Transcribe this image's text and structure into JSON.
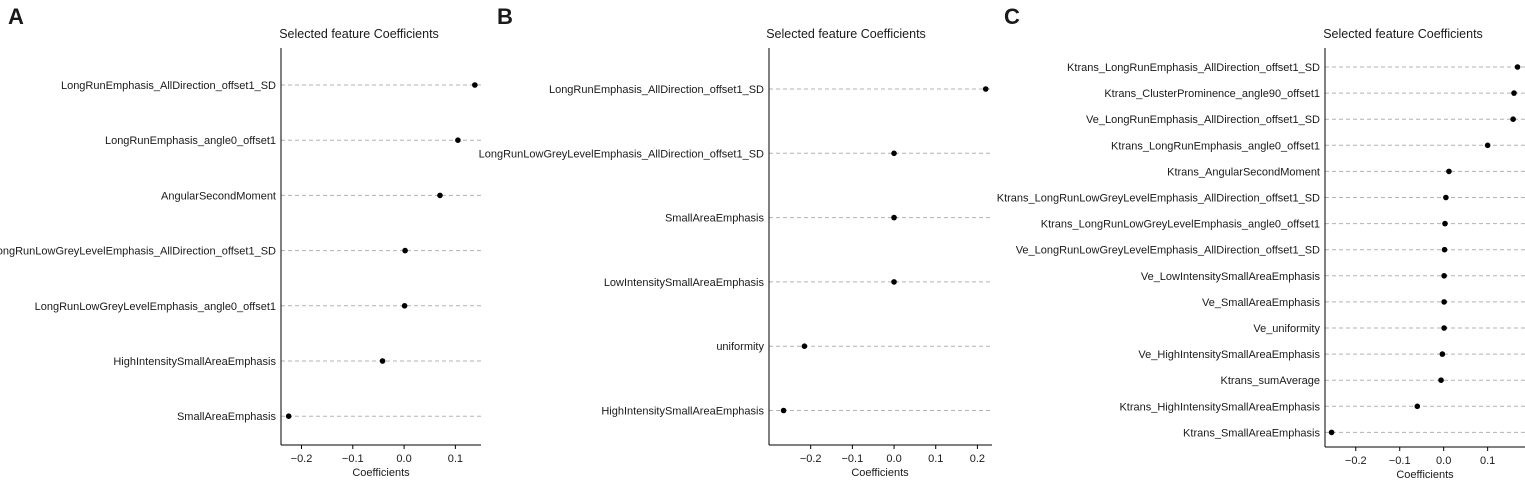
{
  "chart_data": [
    {
      "panel_label": "A",
      "type": "scatter",
      "title": "Selected feature Coefficients",
      "xlabel": "Coefficients",
      "ylabel": "",
      "xlim": [
        -0.24,
        0.15
      ],
      "xticks": [
        -0.2,
        -0.1,
        0.0,
        0.1
      ],
      "xtick_labels": [
        "−0.2",
        "−0.1",
        "0.0",
        "0.1"
      ],
      "grid": "horizontal-dashed",
      "features": [
        "LongRunEmphasis_AllDirection_offset1_SD",
        "LongRunEmphasis_angle0_offset1",
        "AngularSecondMoment",
        "LongRunLowGreyLevelEmphasis_AllDirection_offset1_SD",
        "LongRunLowGreyLevelEmphasis_angle0_offset1",
        "HighIntensitySmallAreaEmphasis",
        "SmallAreaEmphasis"
      ],
      "values": [
        0.138,
        0.105,
        0.07,
        0.002,
        0.001,
        -0.042,
        -0.225
      ]
    },
    {
      "panel_label": "B",
      "type": "scatter",
      "title": "Selected feature Coefficients",
      "xlabel": "Coefficients",
      "ylabel": "",
      "xlim": [
        -0.3,
        0.235
      ],
      "xticks": [
        -0.2,
        -0.1,
        0.0,
        0.1,
        0.2
      ],
      "xtick_labels": [
        "−0.2",
        "−0.1",
        "0.0",
        "0.1",
        "0.2"
      ],
      "grid": "horizontal-dashed",
      "features": [
        "LongRunEmphasis_AllDirection_offset1_SD",
        "LongRunLowGreyLevelEmphasis_AllDirection_offset1_SD",
        "SmallAreaEmphasis",
        "LowIntensitySmallAreaEmphasis",
        "uniformity",
        "HighIntensitySmallAreaEmphasis"
      ],
      "values": [
        0.22,
        0.0,
        0.0,
        0.0,
        -0.215,
        -0.265
      ]
    },
    {
      "panel_label": "C",
      "type": "scatter",
      "title": "Selected feature Coefficients",
      "xlabel": "Coefficients",
      "ylabel": "",
      "xlim": [
        -0.27,
        0.185
      ],
      "xticks": [
        -0.2,
        -0.1,
        0.0,
        0.1
      ],
      "xtick_labels": [
        "−0.2",
        "−0.1",
        "0.0",
        "0.1"
      ],
      "grid": "horizontal-dashed",
      "features": [
        "Ktrans_LongRunEmphasis_AllDirection_offset1_SD",
        "Ktrans_ClusterProminence_angle90_offset1",
        "Ve_LongRunEmphasis_AllDirection_offset1_SD",
        "Ktrans_LongRunEmphasis_angle0_offset1",
        "Ktrans_AngularSecondMoment",
        "Ktrans_LongRunLowGreyLevelEmphasis_AllDirection_offset1_SD",
        "Ktrans_LongRunLowGreyLevelEmphasis_angle0_offset1",
        "Ve_LongRunLowGreyLevelEmphasis_AllDirection_offset1_SD",
        "Ve_LowIntensitySmallAreaEmphasis",
        "Ve_SmallAreaEmphasis",
        "Ve_uniformity",
        "Ve_HighIntensitySmallAreaEmphasis",
        "Ktrans_sumAverage",
        "Ktrans_HighIntensitySmallAreaEmphasis",
        "Ktrans_SmallAreaEmphasis"
      ],
      "values": [
        0.168,
        0.16,
        0.158,
        0.1,
        0.012,
        0.005,
        0.003,
        0.002,
        0.001,
        0.001,
        0.001,
        -0.003,
        -0.006,
        -0.06,
        -0.255
      ]
    }
  ]
}
